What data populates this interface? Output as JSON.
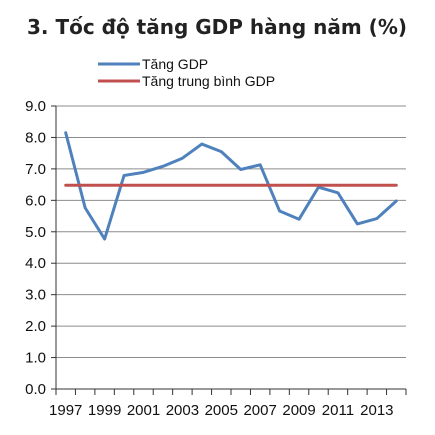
{
  "chart_data": {
    "type": "line",
    "title": "3. Tốc độ tăng GDP hàng năm (%)",
    "x": [
      1997,
      1998,
      1999,
      2000,
      2001,
      2002,
      2003,
      2004,
      2005,
      2006,
      2007,
      2008,
      2009,
      2010,
      2011,
      2012,
      2013,
      2014
    ],
    "x_tick_labels": [
      "1997",
      "1999",
      "2001",
      "2003",
      "2005",
      "2007",
      "2009",
      "2011",
      "2013"
    ],
    "y_tick_labels": [
      "0.0",
      "1.0",
      "2.0",
      "3.0",
      "4.0",
      "5.0",
      "6.0",
      "7.0",
      "8.0",
      "9.0"
    ],
    "ylim": [
      0,
      9
    ],
    "grid": true,
    "legend_position": "top-center",
    "series": [
      {
        "name": "Tăng GDP",
        "color": "#4f81bd",
        "values": [
          8.15,
          5.76,
          4.77,
          6.79,
          6.89,
          7.08,
          7.34,
          7.79,
          7.55,
          6.98,
          7.13,
          5.66,
          5.4,
          6.42,
          6.24,
          5.25,
          5.42,
          5.98
        ]
      },
      {
        "name": "Tăng trung bình GDP",
        "color": "#c0504d",
        "values": [
          6.48,
          6.48,
          6.48,
          6.48,
          6.48,
          6.48,
          6.48,
          6.48,
          6.48,
          6.48,
          6.48,
          6.48,
          6.48,
          6.48,
          6.48,
          6.48,
          6.48,
          6.48
        ]
      }
    ]
  }
}
